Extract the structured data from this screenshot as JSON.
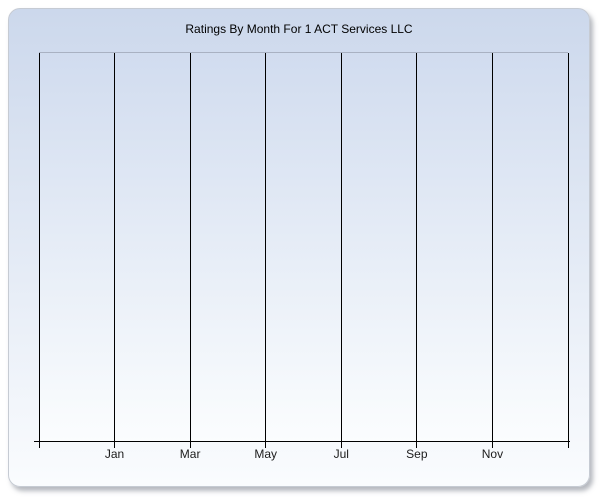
{
  "window": {
    "background_color": "#ffffff"
  },
  "chart_data": {
    "type": "line",
    "title": "Ratings By Month For 1 ACT Services LLC",
    "categories": [
      "Jan",
      "Mar",
      "May",
      "Jul",
      "Sep",
      "Nov"
    ],
    "series": [],
    "values": [],
    "x_gridline_count": 8,
    "grid": "vertical-only",
    "y_axis_labels": "none",
    "legend": "none",
    "plot_state": "empty - no data points plotted"
  },
  "colors": {
    "panel_gradient_top": "#ccd8ec",
    "panel_gradient_bottom": "#fafcfe",
    "panel_border": "#c6cbd3",
    "plot_gradient_top": "#d1dcef",
    "plot_gradient_bottom": "#fbfdfe",
    "plot_top_border": "#a9b1c2",
    "gridline": "#000000",
    "axis_line": "#000000",
    "tick_label": "#1c1c1c",
    "title": "#000000"
  }
}
